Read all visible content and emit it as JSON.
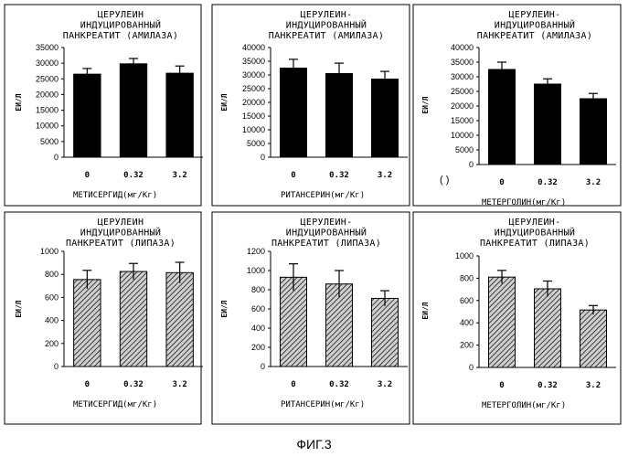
{
  "figure_caption": "ФИГ.3",
  "stray_mark": "( )",
  "colors": {
    "amylase_bar": "#000000",
    "lipase_bar_fill": "#cfcfcf",
    "hatch": "#000000",
    "border": "#000000"
  },
  "chart_data": [
    {
      "type": "bar",
      "title_lines": [
        "ЦЕРУЛЕИН",
        "ИНДУЦИРОВАННЫЙ",
        "ПАНКРЕАТИТ (АМИЛАЗА)"
      ],
      "ylabel": "ЕИ/Л",
      "xlabel": "МЕТИСЕРГИД(мг/Кг)",
      "categories": [
        "0",
        "0.32",
        "3.2"
      ],
      "values": [
        26500,
        29800,
        26800
      ],
      "errors": [
        1800,
        1700,
        2300
      ],
      "ylim": [
        0,
        35000
      ],
      "yticks": [
        0,
        5000,
        10000,
        15000,
        20000,
        25000,
        30000,
        35000
      ],
      "style": "solid"
    },
    {
      "type": "bar",
      "title_lines": [
        "ЦЕРУЛЕИН-",
        "ИНДУЦИРОВАННЫЙ",
        "ПАНКРЕАТИТ (АМИЛАЗА)"
      ],
      "ylabel": "ЕИ/Л",
      "xlabel": "РИТАНСЕРИН(мг/Кг)",
      "categories": [
        "0",
        "0.32",
        "3.2"
      ],
      "values": [
        32500,
        30500,
        28500
      ],
      "errors": [
        3200,
        3800,
        2800
      ],
      "ylim": [
        0,
        40000
      ],
      "yticks": [
        0,
        5000,
        10000,
        15000,
        20000,
        25000,
        30000,
        35000,
        40000
      ],
      "style": "solid"
    },
    {
      "type": "bar",
      "title_lines": [
        "ЦЕРУЛЕИН-",
        "ИНДУЦИРОВАННЫЙ",
        "ПАНКРЕАТИТ (АМИЛАЗА)"
      ],
      "ylabel": "ЕИ/Л",
      "xlabel": "МЕТЕРГОЛИН(мг/Кг)",
      "categories": [
        "0",
        "0.32",
        "3.2"
      ],
      "values": [
        32500,
        27500,
        22500
      ],
      "errors": [
        2500,
        1800,
        1800
      ],
      "ylim": [
        0,
        40000
      ],
      "yticks": [
        0,
        5000,
        10000,
        15000,
        20000,
        25000,
        30000,
        35000,
        40000
      ],
      "style": "solid"
    },
    {
      "type": "bar",
      "title_lines": [
        "ЦЕРУЛЕИН",
        "ИНДУЦИРОВАННЫЙ",
        "ПАНКРЕАТИТ (ЛИПАЗА)"
      ],
      "ylabel": "ЕИ/Л",
      "xlabel": "МЕТИСЕРГИД(мг/Кг)",
      "categories": [
        "0",
        "0.32",
        "3.2"
      ],
      "values": [
        755,
        825,
        815
      ],
      "errors": [
        80,
        70,
        90
      ],
      "ylim": [
        0,
        1000
      ],
      "yticks": [
        0,
        200,
        400,
        600,
        800,
        1000
      ],
      "style": "hatched"
    },
    {
      "type": "bar",
      "title_lines": [
        "ЦЕРУЛЕИН-",
        "ИНДУЦИРОВАННЫЙ",
        "ПАНКРЕАТИТ (ЛИПАЗА)"
      ],
      "ylabel": "ЕИ/Л",
      "xlabel": "РИТАНСЕРИН(мг/Кг)",
      "categories": [
        "0",
        "0.32",
        "3.2"
      ],
      "values": [
        930,
        860,
        710
      ],
      "errors": [
        140,
        140,
        80
      ],
      "ylim": [
        0,
        1200
      ],
      "yticks": [
        0,
        200,
        400,
        600,
        800,
        1000,
        1200
      ],
      "style": "hatched"
    },
    {
      "type": "bar",
      "title_lines": [
        "ЦЕРУЛЕИН-",
        "ИНДУЦИРОВАННЫЙ",
        "ПАНКРЕАТИТ (ЛИПАЗА)"
      ],
      "ylabel": "ЕИ/Л",
      "xlabel": "МЕТЕРГОЛИН(мг/Кг)",
      "categories": [
        "0",
        "0.32",
        "3.2"
      ],
      "values": [
        810,
        705,
        515
      ],
      "errors": [
        60,
        70,
        40
      ],
      "ylim": [
        0,
        1000
      ],
      "yticks": [
        0,
        200,
        400,
        600,
        800,
        1000
      ],
      "style": "hatched"
    }
  ]
}
